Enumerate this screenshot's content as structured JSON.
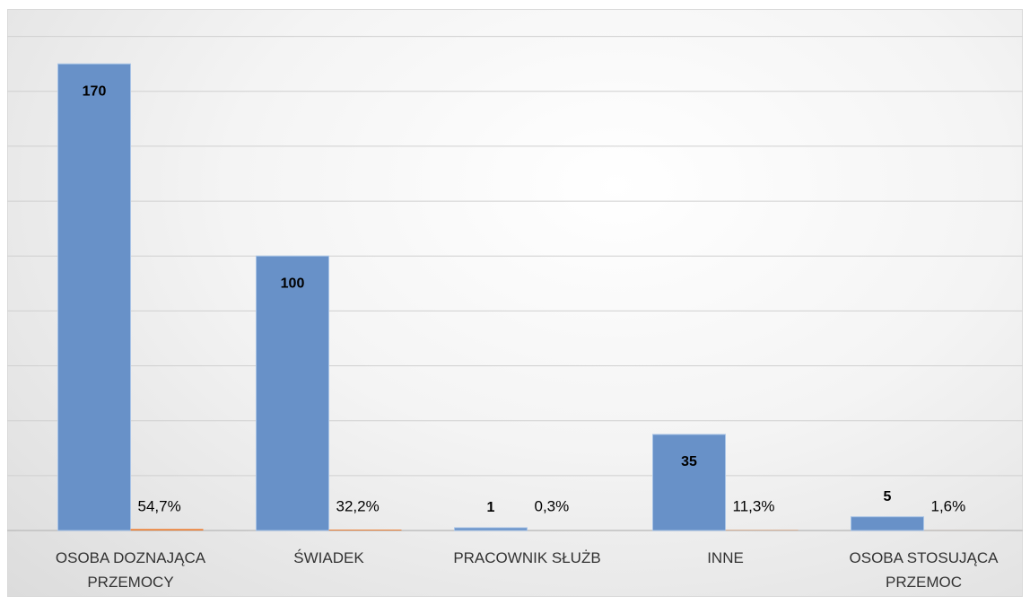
{
  "chart_data": {
    "type": "bar",
    "categories": [
      "OSOBA DOZNAJĄCA PRZEMOCY",
      "ŚWIADEK",
      "PRACOWNIK SŁUŻB",
      "INNE",
      "OSOBA STOSUJĄCA PRZEMOC"
    ],
    "series": [
      {
        "color": "#6891c8",
        "values": [
          170,
          100,
          1,
          35,
          5
        ]
      },
      {
        "color": "#ed7d31",
        "values": [
          0.547,
          0.322,
          0.003,
          0.113,
          0.016
        ],
        "value_labels": [
          "54,7%",
          "32,2%",
          "0,3%",
          "11,3%",
          "1,6%"
        ]
      }
    ],
    "ylim": [
      0,
      180
    ],
    "yticks": [
      0,
      20,
      40,
      60,
      80,
      100,
      120,
      140,
      160,
      180
    ],
    "grid": true
  }
}
